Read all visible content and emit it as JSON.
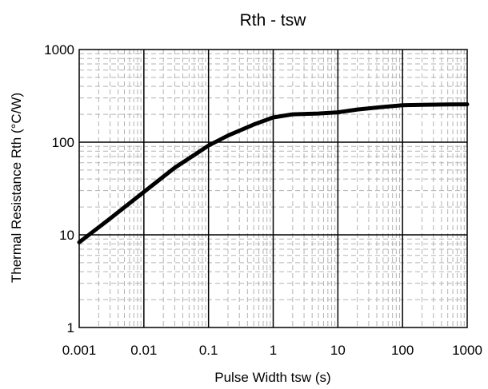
{
  "chart_data": {
    "type": "line",
    "title": "Rth - tsw",
    "xlabel": "Pulse Width tsw (s)",
    "ylabel": "Thermal Resistance Rth (°C/W)",
    "x_scale": "log",
    "y_scale": "log",
    "xlim": [
      0.001,
      1000
    ],
    "ylim": [
      1,
      1000
    ],
    "x_ticks": [
      "0.001",
      "0.01",
      "0.1",
      "1",
      "10",
      "100",
      "1000"
    ],
    "y_ticks": [
      "1",
      "10",
      "100",
      "1000"
    ],
    "grid": true,
    "series": [
      {
        "color": "#000000",
        "x": [
          0.001,
          0.003,
          0.01,
          0.03,
          0.1,
          0.2,
          0.5,
          1,
          2,
          5,
          10,
          20,
          50,
          100,
          200,
          500,
          1000
        ],
        "y": [
          8.3,
          15,
          29,
          53,
          92,
          118,
          155,
          185,
          200,
          204,
          210,
          225,
          240,
          250,
          253,
          255,
          256
        ]
      }
    ]
  }
}
